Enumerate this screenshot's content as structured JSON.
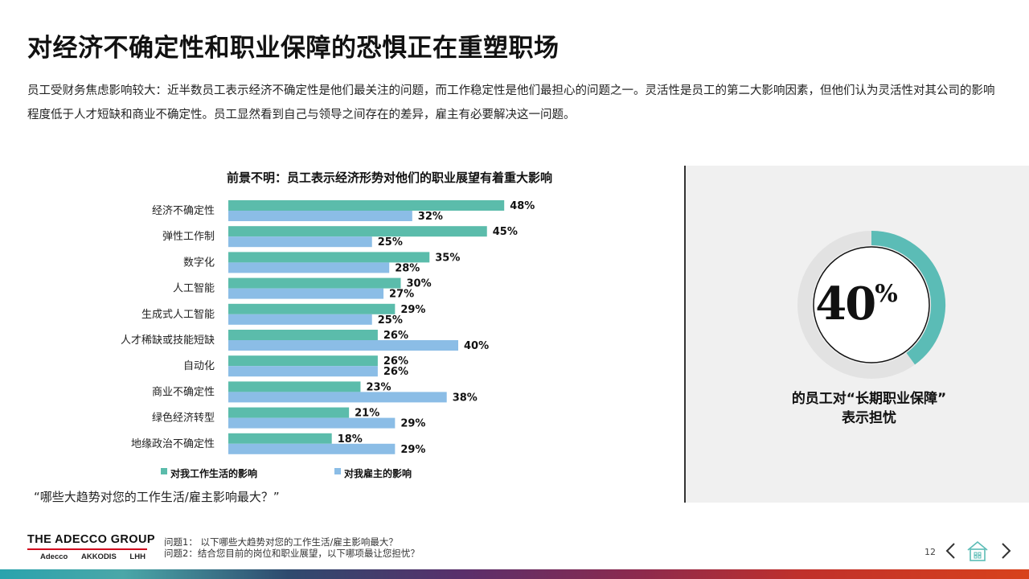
{
  "header": {
    "title": "对经济不确定性和职业保障的恐惧正在重塑职场",
    "intro": "员工受财务焦虑影响较大：近半数员工表示经济不确定性是他们最关注的问题，而工作稳定性是他们最担心的问题之一。灵活性是员工的第二大影响因素，但他们认为灵活性对其公司的影响程度低于人才短缺和商业不确定性。员工显然看到自己与领导之间存在的差异，雇主有必要解决这一问题。"
  },
  "colors": {
    "teal": "#5bbcab",
    "blue": "#8bbde6",
    "donut_fill": "#5bbcb6",
    "donut_track": "#e2e2e2"
  },
  "chart_data": {
    "type": "bar",
    "orientation": "horizontal",
    "title": "前景不明：员工表示经济形势对他们的职业展望有着重大影响",
    "categories": [
      "经济不确定性",
      "弹性工作制",
      "数字化",
      "人工智能",
      "生成式人工智能",
      "人才稀缺或技能短缺",
      "自动化",
      "商业不确定性",
      "绿色经济转型",
      "地缘政治不确定性"
    ],
    "series": [
      {
        "name": "对我工作生活的影响",
        "values": [
          48,
          45,
          35,
          30,
          29,
          26,
          26,
          23,
          21,
          18
        ],
        "color": "#5bbcab"
      },
      {
        "name": "对我雇主的影响",
        "values": [
          32,
          25,
          28,
          27,
          25,
          40,
          26,
          38,
          29,
          29
        ],
        "color": "#8bbde6"
      }
    ],
    "value_suffix": "%",
    "xlim": [
      0,
      50
    ],
    "grid": false,
    "legend_position": "bottom-left"
  },
  "stat": {
    "number": "40",
    "percent_sign": "%",
    "fraction": 0.4,
    "caption_line1": "的员工对“长期职业保障”",
    "caption_line2": "表示担忧"
  },
  "question": "“哪些大趋势对您的工作生活/雇主影响最大？”",
  "footer": {
    "logo": "THE ADECCO GROUP",
    "sub_brands": [
      "Adecco",
      "AKKODIS",
      "LHH"
    ],
    "note1": "问题1： 以下哪些大趋势对您的工作生活/雇主影响最大？",
    "note2": "问题2：结合您目前的岗位和职业展望，以下哪项最让您担忧？",
    "page_number": "12"
  },
  "icons": {
    "prev": "chevron-left-icon",
    "home": "home-icon",
    "next": "chevron-right-icon"
  }
}
